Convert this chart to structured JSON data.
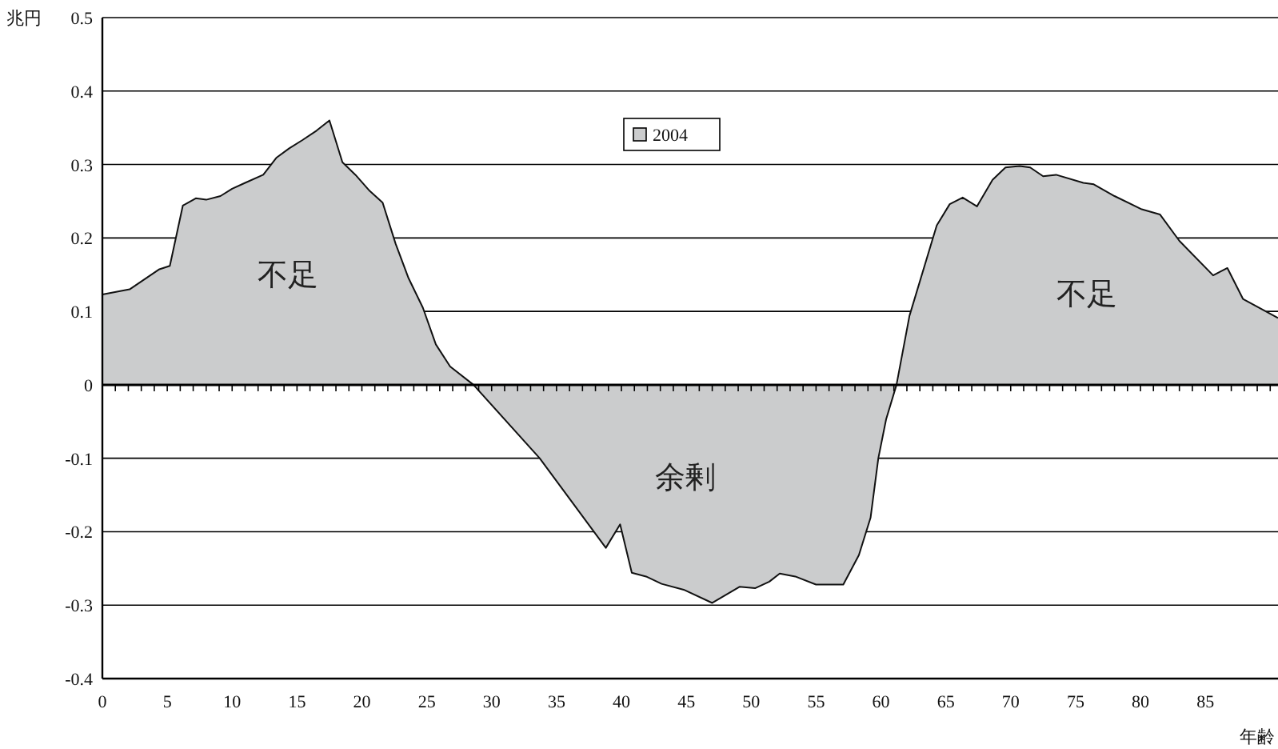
{
  "chart_data": {
    "type": "area",
    "ylabel": "兆円",
    "xlabel": "年齢",
    "x": [
      0,
      2.1,
      4.35,
      5.2,
      6.2,
      7.2,
      8.0,
      9.1,
      10.0,
      11.0,
      12.4,
      13.4,
      14.4,
      15.4,
      16.5,
      17.5,
      18.5,
      19.5,
      20.6,
      21.6,
      22.6,
      23.6,
      24.7,
      25.7,
      26.8,
      28.6,
      33.7,
      38.8,
      39.9,
      40.8,
      41.9,
      43.1,
      44.8,
      47,
      49.1,
      50.3,
      51.4,
      52.2,
      53.4,
      55,
      57.1,
      58.3,
      59.2,
      59.8,
      60.4,
      61.2,
      62.2,
      64.3,
      65.3,
      66.3,
      67.4,
      68.6,
      69.6,
      70.7,
      71.5,
      72.5,
      73.5,
      75.6,
      76.4,
      78,
      80.1,
      81.5,
      83,
      85.6,
      86.7,
      87.9,
      90.6
    ],
    "series": [
      {
        "name": "2004",
        "color": "#cbcccd",
        "values": [
          0.123,
          0.13,
          0.157,
          0.162,
          0.244,
          0.254,
          0.252,
          0.257,
          0.267,
          0.275,
          0.286,
          0.309,
          0.322,
          0.333,
          0.346,
          0.36,
          0.303,
          0.286,
          0.264,
          0.248,
          0.192,
          0.145,
          0.105,
          0.055,
          0.025,
          0,
          -0.1,
          -0.222,
          -0.19,
          -0.256,
          -0.261,
          -0.271,
          -0.279,
          -0.297,
          -0.275,
          -0.277,
          -0.268,
          -0.257,
          -0.261,
          -0.272,
          -0.272,
          -0.232,
          -0.181,
          -0.1,
          -0.047,
          0,
          0.094,
          0.217,
          0.246,
          0.255,
          0.243,
          0.279,
          0.296,
          0.298,
          0.296,
          0.284,
          0.286,
          0.275,
          0.273,
          0.257,
          0.239,
          0.232,
          0.196,
          0.149,
          0.159,
          0.117,
          0.091
        ]
      }
    ],
    "xlim": [
      0,
      90.6
    ],
    "xticks": [
      0,
      5,
      10,
      15,
      20,
      25,
      30,
      35,
      40,
      45,
      50,
      55,
      60,
      65,
      70,
      75,
      80,
      85
    ],
    "ylim": [
      -0.4,
      0.5
    ],
    "yticks": [
      -0.4,
      -0.3,
      -0.2,
      -0.1,
      0,
      0.1,
      0.2,
      0.3,
      0.4,
      0.5
    ],
    "grid": "y",
    "legend": "top",
    "annotations": [
      "不足",
      "余剰",
      "不足"
    ]
  }
}
